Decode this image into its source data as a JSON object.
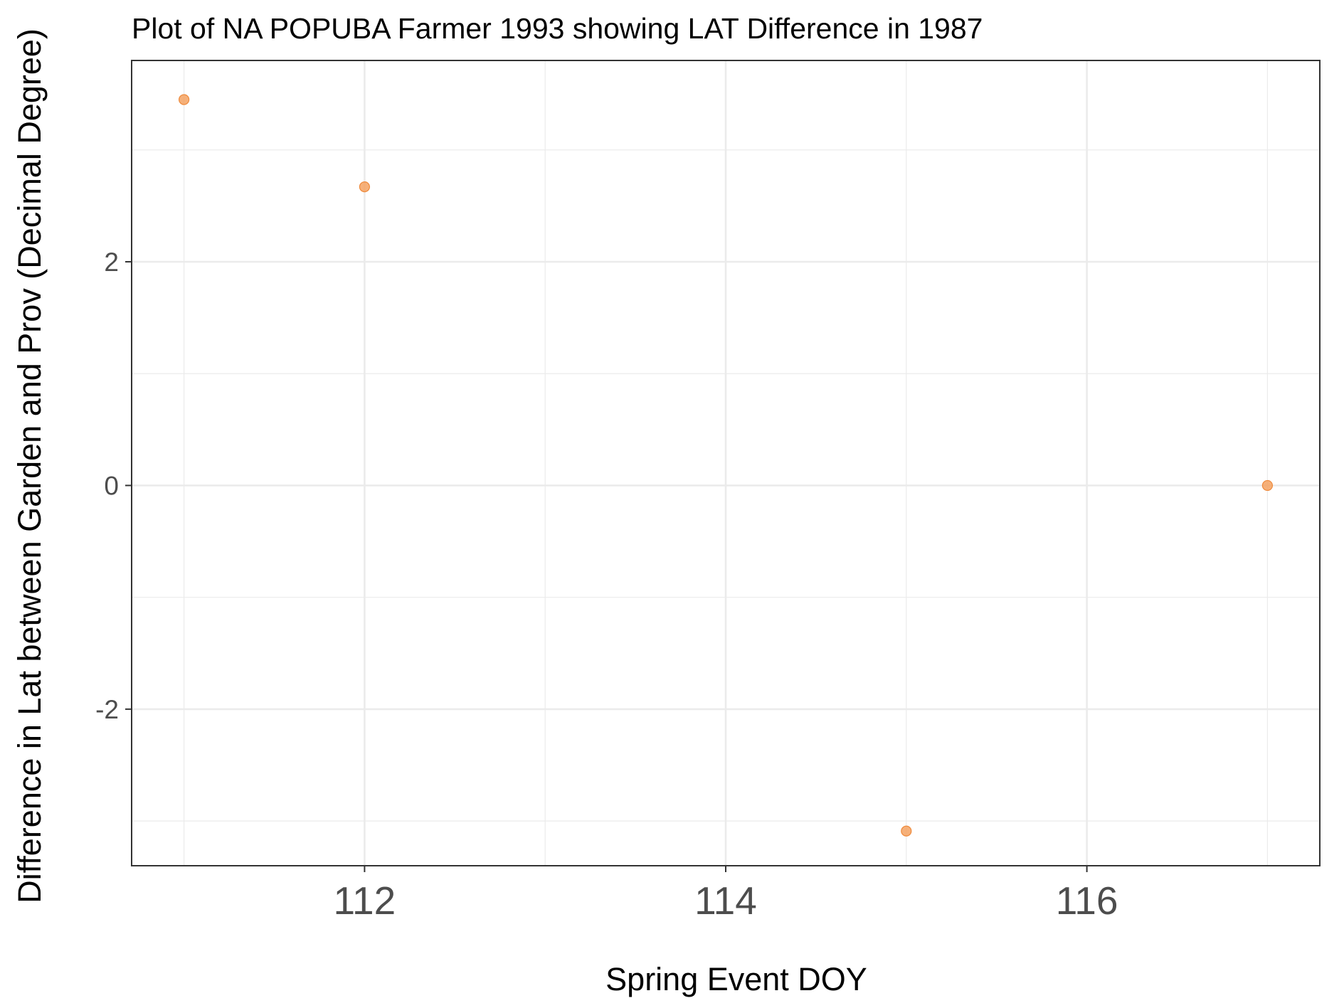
{
  "chart_data": {
    "type": "scatter",
    "title": "Plot of NA POPUBA Farmer 1993 showing LAT Difference in 1987",
    "xlabel": "Spring Event DOY",
    "ylabel": "Difference in Lat between Garden and Prov (Decimal Degree)",
    "xlim": [
      110.71,
      117.29
    ],
    "ylim": [
      -3.4,
      3.8
    ],
    "xticks": [
      112,
      114,
      116
    ],
    "xtick_labels": [
      "112",
      "114",
      "116"
    ],
    "yticks": [
      -2,
      0,
      2
    ],
    "ytick_labels": [
      "-2",
      "0",
      "2"
    ],
    "grid": true,
    "legend": "none",
    "point_color": "#f4a261",
    "points": [
      {
        "x": 111,
        "y": 3.45
      },
      {
        "x": 112,
        "y": 2.67
      },
      {
        "x": 115,
        "y": -3.09
      },
      {
        "x": 117,
        "y": 0.0
      }
    ]
  }
}
